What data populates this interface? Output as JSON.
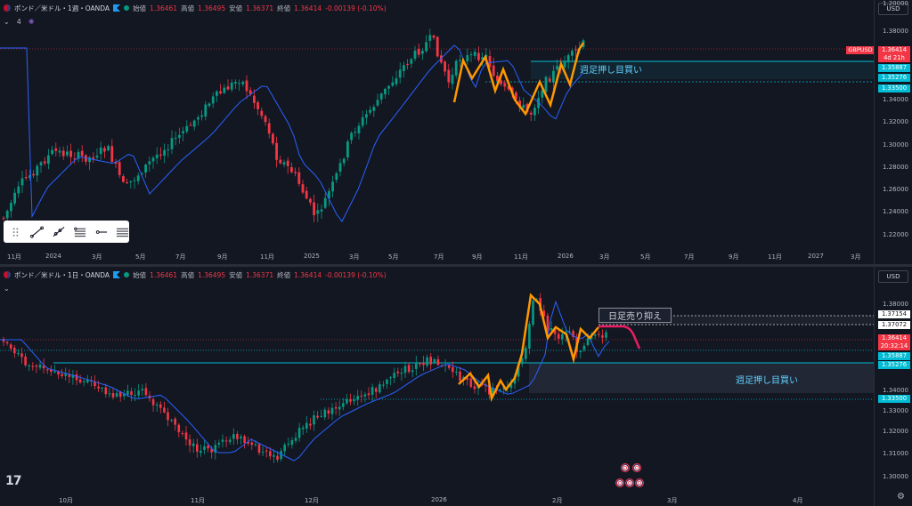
{
  "top": {
    "symbol": "ポンド／米ドル・1週・OANDA",
    "ohlc": {
      "open_label": "始値",
      "open": "1.36461",
      "high_label": "高値",
      "high": "1.36495",
      "low_label": "安値",
      "low": "1.36371",
      "close_label": "終値",
      "close": "1.36414",
      "change": "-0.00139 (-0.10%)"
    },
    "indicator_count": "4",
    "currency": "USD",
    "y_ticks": [
      "1.38000",
      "1.34000",
      "1.32000",
      "1.30000",
      "1.28000",
      "1.26000",
      "1.24000",
      "1.22000",
      "1.20000"
    ],
    "x_ticks": [
      "11月",
      "2024",
      "3月",
      "5月",
      "7月",
      "9月",
      "11月",
      "2025",
      "3月",
      "5月",
      "7月",
      "9月",
      "11月",
      "2026",
      "3月",
      "5月",
      "7月",
      "9月",
      "11月",
      "2027",
      "3月"
    ],
    "symbol_tag": "GBPUSD",
    "price_badge": "1.36414",
    "countdown": "4d 21h",
    "level_badges": [
      "1.35887",
      "1.35276",
      "1.33500"
    ],
    "zone_label": "週足押し目買い",
    "colors": {
      "up": "#089981",
      "down": "#f23645",
      "ma": "#2962ff",
      "zigzag": "#ff9800",
      "zone": "#00bcd4"
    }
  },
  "bottom": {
    "symbol": "ポンド／米ドル・1日・OANDA",
    "ohlc": {
      "open_label": "始値",
      "open": "1.36461",
      "high_label": "高値",
      "high": "1.36495",
      "low_label": "安値",
      "low": "1.36371",
      "close_label": "終値",
      "close": "1.36414",
      "change": "-0.00139 (-0.10%)"
    },
    "currency": "USD",
    "y_ticks": [
      "1.38000",
      "1.34000",
      "1.33000",
      "1.32000",
      "1.31000",
      "1.30000"
    ],
    "x_ticks": [
      "10月",
      "11月",
      "12月",
      "2026",
      "2月",
      "3月",
      "4月"
    ],
    "level_badges_top": [
      "1.37154",
      "1.37072"
    ],
    "price_badge": "1.36414",
    "countdown": "20:32:14",
    "level_badges": [
      "1.35887",
      "1.35276",
      "1.33500"
    ],
    "zone_label_daily": "日足売り抑え",
    "zone_label_weekly": "週足押し目買い"
  },
  "toolbar_icons": [
    "drag-handle-icon",
    "trend-line-icon",
    "ray-icon",
    "fib-retracement-icon",
    "horizontal-ray-icon",
    "horizontal-lines-icon"
  ],
  "tv_logo": "17"
}
